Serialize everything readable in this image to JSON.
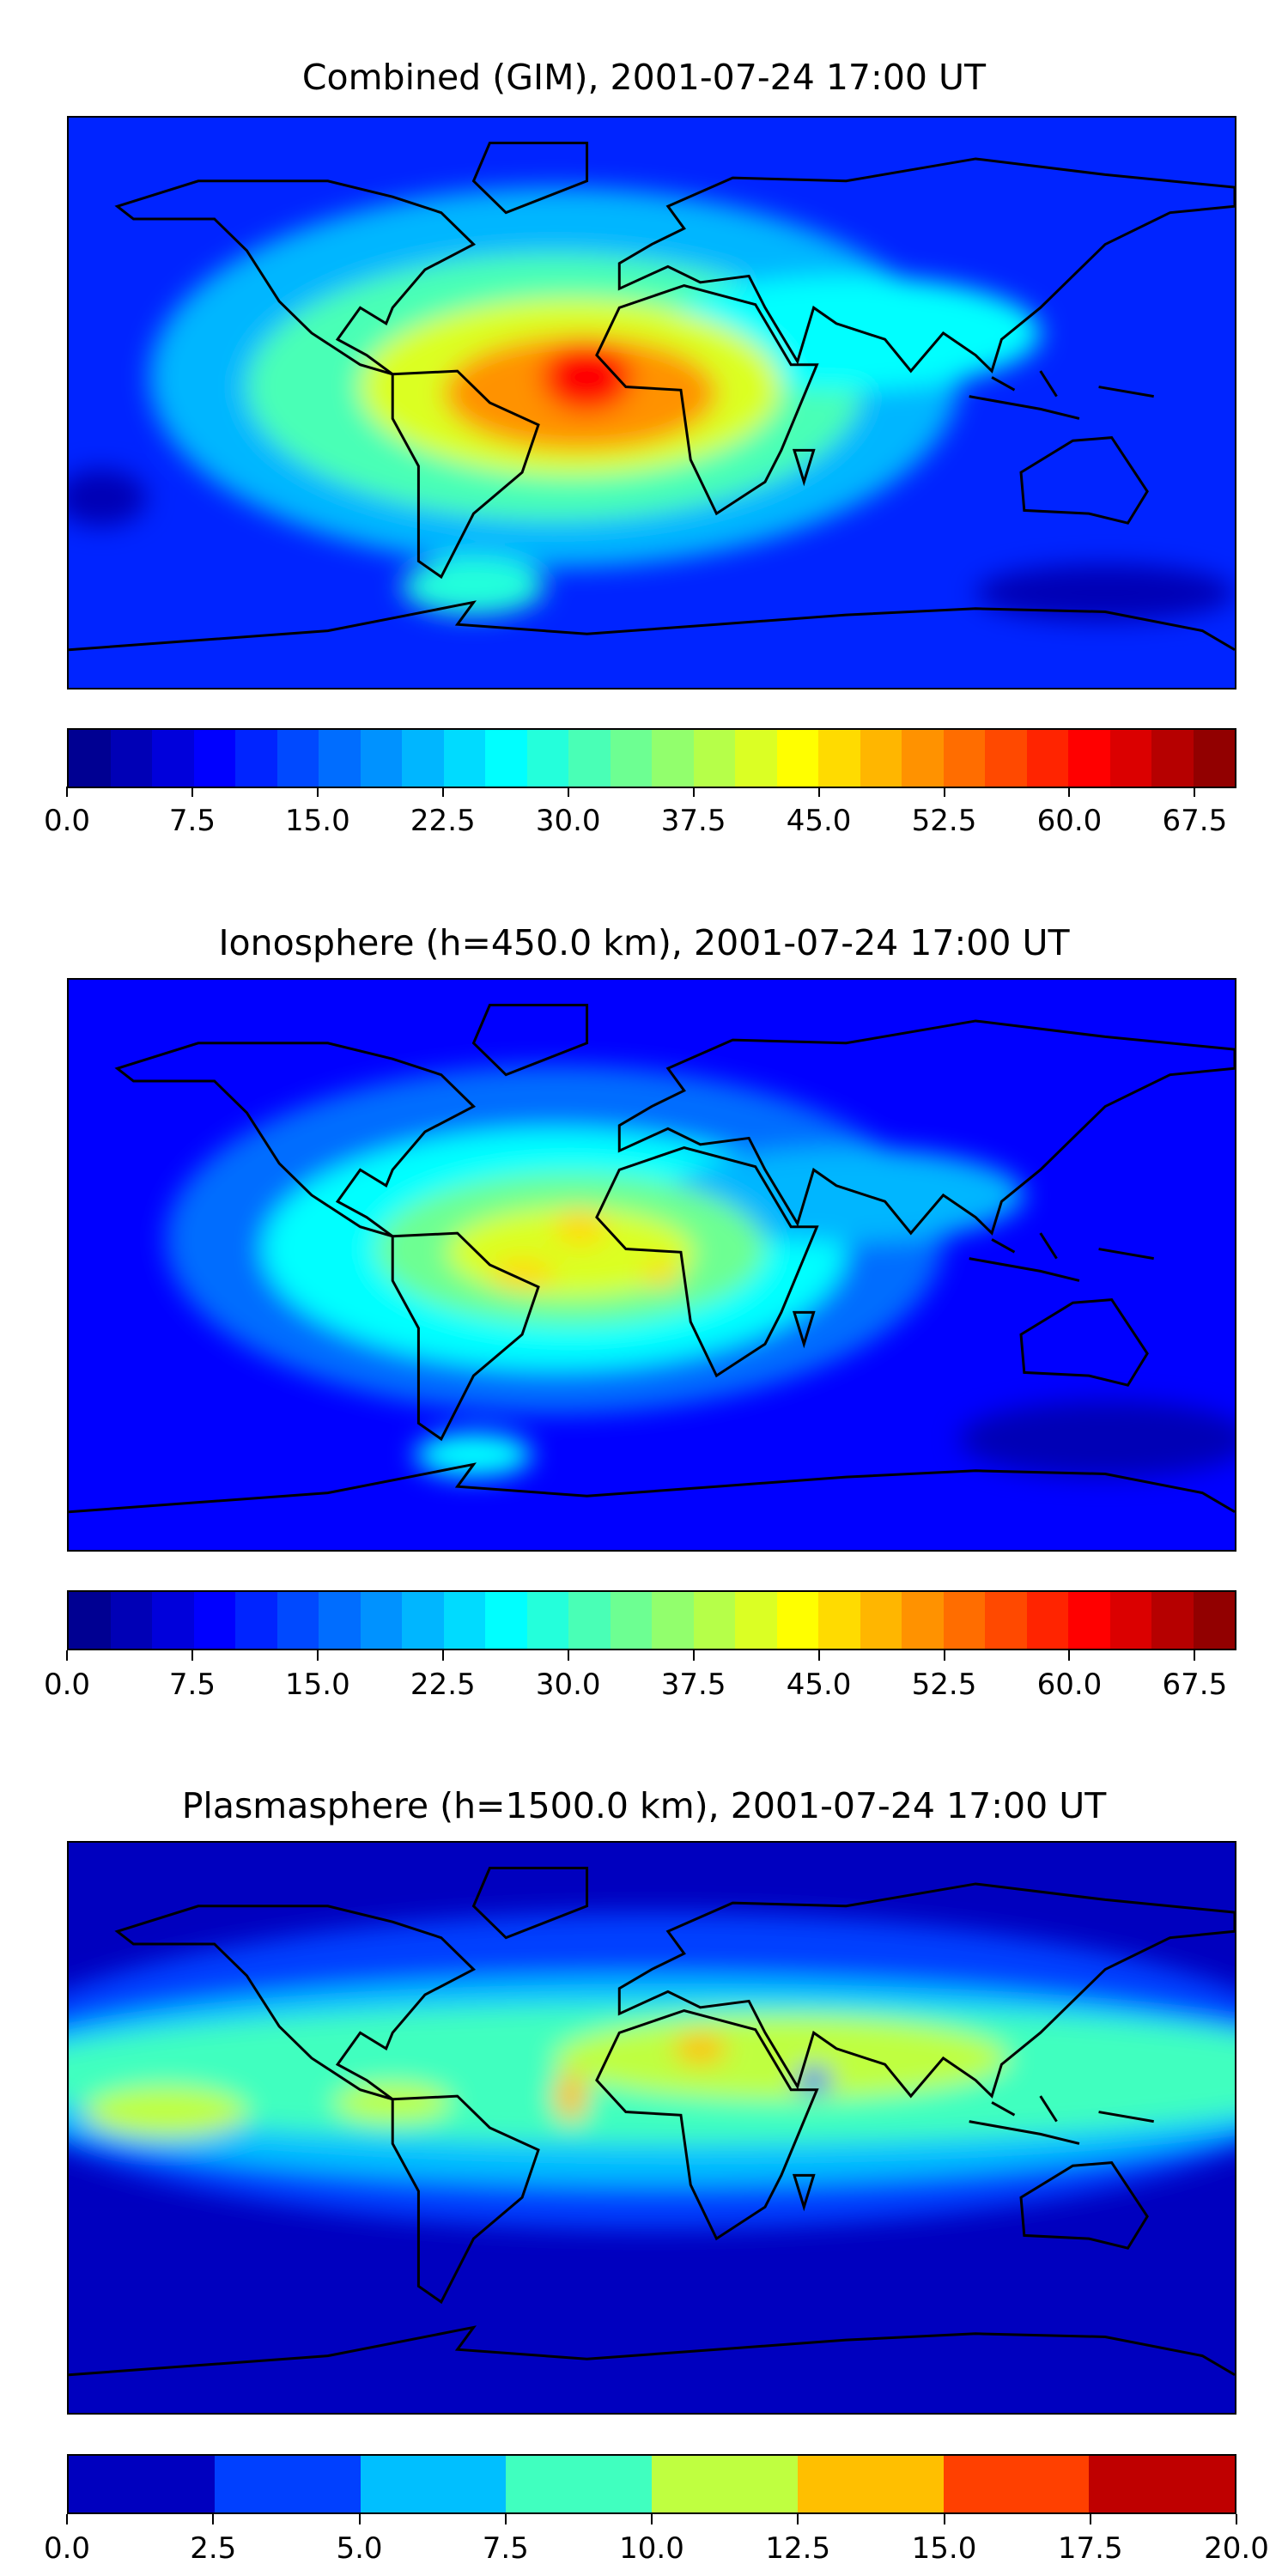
{
  "chart_data": [
    {
      "type": "heatmap",
      "title": "Combined (GIM), 2001-07-24 17:00 UT",
      "colormap": "jet",
      "vmin": 0,
      "vmax": 70,
      "level_step": 2.5,
      "colorbar_ticks": [
        "0.0",
        "7.5",
        "15.0",
        "22.5",
        "30.0",
        "37.5",
        "45.0",
        "52.5",
        "60.0",
        "67.5"
      ],
      "colorbar_tick_values": [
        0,
        7.5,
        15,
        22.5,
        30,
        37.5,
        45,
        52.5,
        60,
        67.5
      ],
      "background_value": 11,
      "features": [
        {
          "lon": -30,
          "lat": 8,
          "rx": 125,
          "ry": 60,
          "value": 20
        },
        {
          "lon": -30,
          "lat": 5,
          "rx": 95,
          "ry": 42,
          "value": 30
        },
        {
          "lon": 60,
          "lat": 22,
          "rx": 60,
          "ry": 18,
          "value": 27
        },
        {
          "lon": -25,
          "lat": 5,
          "rx": 65,
          "ry": 28,
          "value": 40
        },
        {
          "lon": -22,
          "lat": 3,
          "rx": 42,
          "ry": 18,
          "value": 50
        },
        {
          "lon": -20,
          "lat": 8,
          "rx": 14,
          "ry": 11,
          "value": 60
        },
        {
          "lon": -55,
          "lat": -58,
          "rx": 22,
          "ry": 9,
          "value": 28
        },
        {
          "lon": 140,
          "lat": -60,
          "rx": 40,
          "ry": 9,
          "value": 4
        },
        {
          "lon": -170,
          "lat": -30,
          "rx": 14,
          "ry": 9,
          "value": 4
        }
      ]
    },
    {
      "type": "heatmap",
      "title": "Ionosphere  (h=450.0 km), 2001-07-24 17:00 UT",
      "colormap": "jet",
      "vmin": 0,
      "vmax": 70,
      "level_step": 2.5,
      "colorbar_ticks": [
        "0.0",
        "7.5",
        "15.0",
        "22.5",
        "30.0",
        "37.5",
        "45.0",
        "52.5",
        "60.0",
        "67.5"
      ],
      "colorbar_tick_values": [
        0,
        7.5,
        15,
        22.5,
        30,
        37.5,
        45,
        52.5,
        60,
        67.5
      ],
      "background_value": 9,
      "features": [
        {
          "lon": -30,
          "lat": 8,
          "rx": 120,
          "ry": 55,
          "value": 17
        },
        {
          "lon": -30,
          "lat": 5,
          "rx": 90,
          "ry": 38,
          "value": 25
        },
        {
          "lon": 60,
          "lat": 22,
          "rx": 55,
          "ry": 15,
          "value": 22
        },
        {
          "lon": -25,
          "lat": 5,
          "rx": 60,
          "ry": 24,
          "value": 33
        },
        {
          "lon": -25,
          "lat": 4,
          "rx": 38,
          "ry": 14,
          "value": 40
        },
        {
          "lon": -22,
          "lat": 12,
          "rx": 8,
          "ry": 6,
          "value": 46
        },
        {
          "lon": -40,
          "lat": -3,
          "rx": 10,
          "ry": 5,
          "value": 45
        },
        {
          "lon": 3,
          "lat": -3,
          "rx": 6,
          "ry": 4,
          "value": 45
        },
        {
          "lon": -55,
          "lat": -60,
          "rx": 18,
          "ry": 7,
          "value": 25
        },
        {
          "lon": 140,
          "lat": -55,
          "rx": 45,
          "ry": 12,
          "value": 4
        }
      ]
    },
    {
      "type": "heatmap",
      "title": "Plasmasphere (h=1500.0 km), 2001-07-24 17:00 UT",
      "colormap": "jet",
      "vmin": 0,
      "vmax": 20,
      "level_step": 2.5,
      "colorbar_ticks": [
        "0.0",
        "2.5",
        "5.0",
        "7.5",
        "10.0",
        "12.5",
        "15.0",
        "17.5",
        "20.0"
      ],
      "colorbar_tick_values": [
        0,
        2.5,
        5,
        7.5,
        10,
        12.5,
        15,
        17.5,
        20
      ],
      "background_value": 1,
      "features": [
        {
          "lon": 0,
          "lat": 18,
          "rx": 210,
          "ry": 50,
          "value": 4
        },
        {
          "lon": 0,
          "lat": 15,
          "rx": 210,
          "ry": 33,
          "value": 6.5
        },
        {
          "lon": 10,
          "lat": 17,
          "rx": 210,
          "ry": 22,
          "value": 9
        },
        {
          "lon": 40,
          "lat": 22,
          "rx": 70,
          "ry": 13,
          "value": 11
        },
        {
          "lon": -150,
          "lat": 5,
          "rx": 25,
          "ry": 8,
          "value": 11
        },
        {
          "lon": -80,
          "lat": 8,
          "rx": 18,
          "ry": 6,
          "value": 11
        },
        {
          "lon": 15,
          "lat": 25,
          "rx": 8,
          "ry": 5,
          "value": 13.5
        },
        {
          "lon": -25,
          "lat": 10,
          "rx": 5,
          "ry": 8,
          "value": 13.5
        },
        {
          "lon": 50,
          "lat": 15,
          "rx": 5,
          "ry": 4,
          "value": 3
        }
      ]
    }
  ]
}
